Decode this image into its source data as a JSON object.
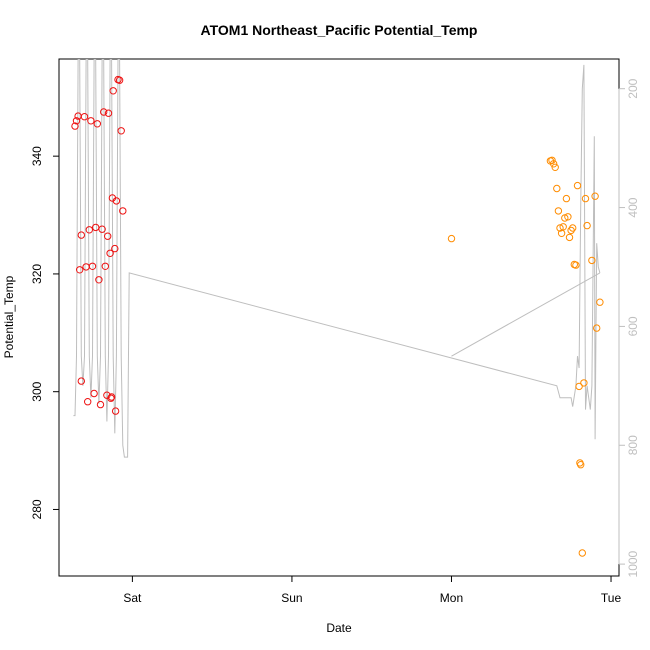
{
  "chart_data": {
    "type": "scatter",
    "title": "ATOM1 Northeast_Pacific Potential_Temp",
    "xlabel": "Date",
    "ylabel": "Potential_Temp",
    "x_ticks": [
      "Sat",
      "Sun",
      "Mon",
      "Tue"
    ],
    "y_ticks": [
      280,
      300,
      320,
      340
    ],
    "y_right_ticks": [
      200,
      400,
      600,
      800,
      1000
    ],
    "xlim": [
      -0.46,
      3.05
    ],
    "ylim": [
      268.7,
      356.5
    ],
    "y_right_lim": [
      1020,
      150
    ],
    "y_right_reversed": true,
    "grid": false,
    "series": [
      {
        "color": "#ee1111",
        "points": [
          [
            -0.36,
            345.1
          ],
          [
            -0.35,
            346.0
          ],
          [
            -0.34,
            346.8
          ],
          [
            -0.33,
            320.7
          ],
          [
            -0.32,
            301.8
          ],
          [
            -0.32,
            326.6
          ],
          [
            -0.3,
            346.7
          ],
          [
            -0.29,
            321.2
          ],
          [
            -0.28,
            298.3
          ],
          [
            -0.27,
            327.5
          ],
          [
            -0.26,
            346.0
          ],
          [
            -0.25,
            321.3
          ],
          [
            -0.24,
            299.7
          ],
          [
            -0.23,
            327.9
          ],
          [
            -0.22,
            345.5
          ],
          [
            -0.21,
            319.0
          ],
          [
            -0.2,
            297.8
          ],
          [
            -0.19,
            327.6
          ],
          [
            -0.18,
            347.5
          ],
          [
            -0.17,
            321.3
          ],
          [
            -0.16,
            299.4
          ],
          [
            -0.155,
            326.4
          ],
          [
            -0.15,
            347.3
          ],
          [
            -0.14,
            323.5
          ],
          [
            -0.135,
            298.9
          ],
          [
            -0.13,
            299.1
          ],
          [
            -0.125,
            332.9
          ],
          [
            -0.12,
            351.1
          ],
          [
            -0.11,
            324.3
          ],
          [
            -0.105,
            296.7
          ],
          [
            -0.1,
            332.4
          ],
          [
            -0.09,
            353.0
          ],
          [
            -0.08,
            352.9
          ],
          [
            -0.07,
            344.3
          ],
          [
            -0.06,
            330.7
          ]
        ]
      },
      {
        "color": "#ff8c00",
        "points": [
          [
            2.0,
            326.0
          ],
          [
            2.62,
            339.2
          ],
          [
            2.63,
            339.3
          ],
          [
            2.64,
            338.7
          ],
          [
            2.65,
            338.1
          ],
          [
            2.66,
            334.5
          ],
          [
            2.67,
            330.7
          ],
          [
            2.68,
            327.8
          ],
          [
            2.69,
            326.9
          ],
          [
            2.7,
            328.0
          ],
          [
            2.71,
            329.5
          ],
          [
            2.72,
            332.8
          ],
          [
            2.73,
            329.7
          ],
          [
            2.74,
            326.2
          ],
          [
            2.75,
            327.4
          ],
          [
            2.76,
            327.8
          ],
          [
            2.77,
            321.6
          ],
          [
            2.78,
            321.5
          ],
          [
            2.79,
            335.0
          ],
          [
            2.8,
            300.9
          ],
          [
            2.805,
            287.9
          ],
          [
            2.81,
            287.6
          ],
          [
            2.82,
            272.6
          ],
          [
            2.83,
            301.5
          ],
          [
            2.84,
            332.8
          ],
          [
            2.85,
            328.2
          ],
          [
            2.88,
            322.3
          ],
          [
            2.9,
            333.2
          ],
          [
            2.91,
            310.8
          ],
          [
            2.93,
            315.2
          ]
        ]
      }
    ],
    "line_series": {
      "color": "#bebebe",
      "points_right_axis": [
        [
          -0.37,
          750
        ],
        [
          -0.36,
          750
        ],
        [
          -0.35,
          650
        ],
        [
          -0.34,
          150
        ],
        [
          -0.33,
          150
        ],
        [
          -0.32,
          650
        ],
        [
          -0.31,
          700
        ],
        [
          -0.3,
          650
        ],
        [
          -0.29,
          150
        ],
        [
          -0.28,
          150
        ],
        [
          -0.27,
          650
        ],
        [
          -0.26,
          720
        ],
        [
          -0.25,
          650
        ],
        [
          -0.24,
          150
        ],
        [
          -0.23,
          150
        ],
        [
          -0.22,
          650
        ],
        [
          -0.21,
          730
        ],
        [
          -0.2,
          650
        ],
        [
          -0.19,
          150
        ],
        [
          -0.18,
          150
        ],
        [
          -0.17,
          650
        ],
        [
          -0.16,
          760
        ],
        [
          -0.15,
          650
        ],
        [
          -0.14,
          150
        ],
        [
          -0.13,
          150
        ],
        [
          -0.12,
          650
        ],
        [
          -0.11,
          780
        ],
        [
          -0.1,
          650
        ],
        [
          -0.09,
          150
        ],
        [
          -0.08,
          150
        ],
        [
          -0.07,
          650
        ],
        [
          -0.06,
          800
        ],
        [
          -0.05,
          820
        ],
        [
          -0.04,
          820
        ],
        [
          -0.03,
          820
        ],
        [
          -0.02,
          510
        ],
        [
          2.66,
          700
        ],
        [
          2.68,
          720
        ],
        [
          2.7,
          720
        ],
        [
          2.75,
          720
        ],
        [
          2.76,
          735
        ],
        [
          2.78,
          700
        ],
        [
          2.79,
          650
        ],
        [
          2.8,
          670
        ],
        [
          2.81,
          400
        ],
        [
          2.82,
          200
        ],
        [
          2.83,
          160
        ],
        [
          2.84,
          740
        ],
        [
          2.85,
          700
        ],
        [
          2.87,
          740
        ],
        [
          2.88,
          700
        ],
        [
          2.895,
          280
        ],
        [
          2.9,
          790
        ],
        [
          2.91,
          460
        ],
        [
          2.92,
          500
        ],
        [
          2.93,
          510
        ]
      ],
      "extra_segment_right_axis": [
        [
          2.0,
          650
        ],
        [
          2.93,
          510
        ]
      ]
    }
  }
}
